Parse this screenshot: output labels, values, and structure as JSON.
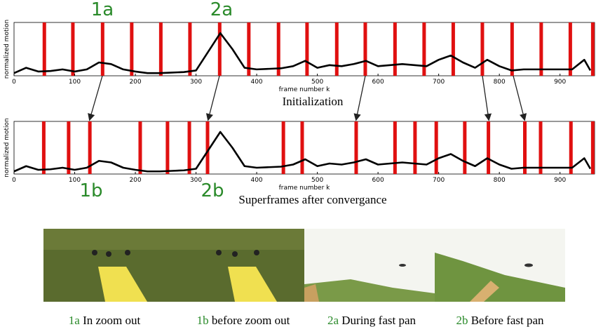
{
  "chart_data": [
    {
      "type": "line",
      "title": "Initialization",
      "xlabel": "frame number k",
      "ylabel": "normalized motion",
      "annotations": [
        "1a",
        "2a"
      ],
      "x": [
        0,
        20,
        40,
        60,
        80,
        100,
        120,
        140,
        160,
        180,
        200,
        220,
        240,
        260,
        280,
        300,
        320,
        340,
        360,
        380,
        400,
        420,
        440,
        460,
        480,
        500,
        520,
        540,
        560,
        580,
        600,
        620,
        640,
        660,
        680,
        700,
        720,
        740,
        760,
        780,
        800,
        820,
        840,
        860,
        880,
        900,
        920,
        940,
        950
      ],
      "series": [
        {
          "color": "#000000",
          "values": [
            0.05,
            0.15,
            0.08,
            0.09,
            0.12,
            0.08,
            0.12,
            0.25,
            0.22,
            0.12,
            0.08,
            0.05,
            0.05,
            0.06,
            0.07,
            0.1,
            0.45,
            0.8,
            0.5,
            0.15,
            0.12,
            0.13,
            0.14,
            0.18,
            0.28,
            0.15,
            0.2,
            0.18,
            0.22,
            0.28,
            0.18,
            0.2,
            0.22,
            0.2,
            0.18,
            0.3,
            0.38,
            0.25,
            0.15,
            0.3,
            0.18,
            0.1,
            0.12,
            0.12,
            0.12,
            0.12,
            0.12,
            0.3,
            0.1
          ]
        }
      ],
      "boundaries": {
        "color": "#e01010",
        "x": [
          50,
          97,
          146,
          194,
          242,
          290,
          339,
          387,
          436,
          483,
          532,
          579,
          628,
          676,
          724,
          772,
          821,
          869,
          917,
          954
        ]
      },
      "xlim": [
        0,
        957
      ],
      "ylim": [
        0,
        1
      ],
      "xticks": [
        0,
        100,
        200,
        300,
        400,
        500,
        600,
        700,
        800,
        900
      ]
    },
    {
      "type": "line",
      "title": "Superframes after convergance",
      "xlabel": "frame number k",
      "ylabel": "normalized motion",
      "annotations": [
        "1b",
        "2b"
      ],
      "x": [
        0,
        20,
        40,
        60,
        80,
        100,
        120,
        140,
        160,
        180,
        200,
        220,
        240,
        260,
        280,
        300,
        320,
        340,
        360,
        380,
        400,
        420,
        440,
        460,
        480,
        500,
        520,
        540,
        560,
        580,
        600,
        620,
        640,
        660,
        680,
        700,
        720,
        740,
        760,
        780,
        800,
        820,
        840,
        860,
        880,
        900,
        920,
        940,
        950
      ],
      "series": [
        {
          "color": "#000000",
          "values": [
            0.05,
            0.15,
            0.08,
            0.09,
            0.12,
            0.08,
            0.12,
            0.25,
            0.22,
            0.12,
            0.08,
            0.05,
            0.05,
            0.06,
            0.07,
            0.1,
            0.45,
            0.8,
            0.5,
            0.15,
            0.12,
            0.13,
            0.14,
            0.18,
            0.28,
            0.15,
            0.2,
            0.18,
            0.22,
            0.28,
            0.18,
            0.2,
            0.22,
            0.2,
            0.18,
            0.3,
            0.38,
            0.25,
            0.15,
            0.3,
            0.18,
            0.1,
            0.12,
            0.12,
            0.12,
            0.12,
            0.12,
            0.3,
            0.1
          ]
        }
      ],
      "boundaries": {
        "color": "#e01010",
        "x": [
          49,
          90,
          125,
          208,
          253,
          289,
          319,
          444,
          475,
          564,
          628,
          661,
          696,
          743,
          782,
          842,
          868,
          918,
          954
        ]
      },
      "xlim": [
        0,
        957
      ],
      "ylim": [
        0,
        1
      ],
      "xticks": [
        0,
        100,
        200,
        300,
        400,
        500,
        600,
        700,
        800,
        900
      ]
    }
  ],
  "images": [
    {
      "tag": "1a",
      "caption": "In zoom out"
    },
    {
      "tag": "1b",
      "caption": "before zoom out"
    },
    {
      "tag": "2a",
      "caption": "During fast pan"
    },
    {
      "tag": "2b",
      "caption": "Before fast pan"
    }
  ]
}
